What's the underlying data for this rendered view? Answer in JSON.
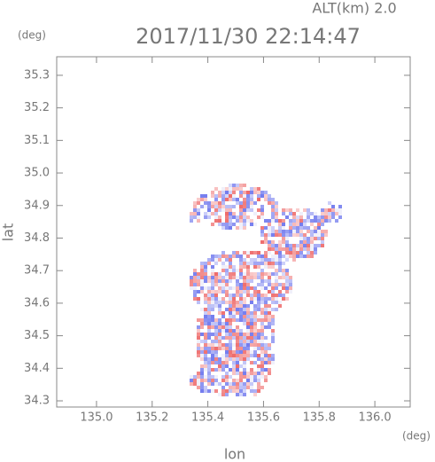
{
  "chart_data": {
    "type": "map",
    "title": "2017/11/30 22:14:47",
    "subtitle": "ALT(km) 2.0",
    "xlabel": "lon",
    "ylabel": "lat",
    "xunit": "(deg)",
    "yunit": "(deg)",
    "xlim": [
      134.857,
      136.127
    ],
    "ylim": [
      34.281,
      35.357
    ],
    "xticks": [
      {
        "value": 135,
        "label": "135.0"
      },
      135.2,
      135.4,
      135.6,
      135.8,
      {
        "value": 136,
        "label": "136.0"
      }
    ],
    "yticks": [
      34.3,
      34.4,
      34.5,
      34.6,
      34.7,
      34.8,
      34.9,
      {
        "value": 35,
        "label": "35.0"
      },
      35.1,
      35.2,
      35.3
    ]
  }
}
